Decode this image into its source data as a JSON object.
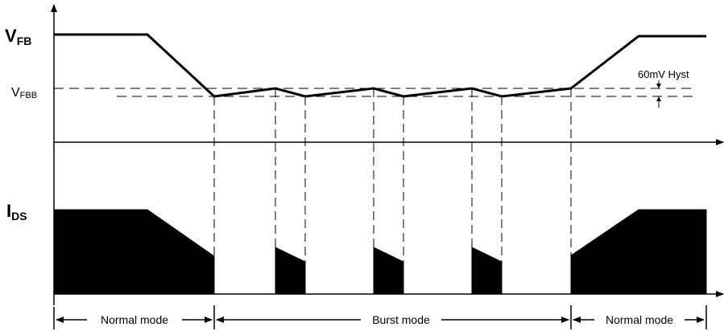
{
  "labels": {
    "vfb_main": "V",
    "vfb_sub": "FB",
    "vfbb_main": "V",
    "vfbb_sub": "FBB",
    "ids_main": "I",
    "ids_sub": "DS",
    "hysteresis": "60mV Hyst"
  },
  "modes": [
    {
      "label": "Normal mode"
    },
    {
      "label": "Burst mode"
    },
    {
      "label": "Normal mode"
    }
  ],
  "colors": {
    "line": "#000000",
    "fill": "#000000",
    "background": "#ffffff"
  }
}
